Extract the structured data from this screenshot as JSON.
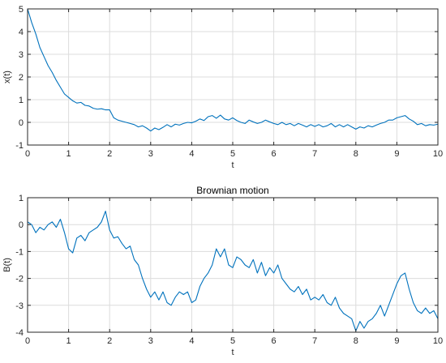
{
  "chart_data": [
    {
      "type": "line",
      "title": "",
      "xlabel": "t",
      "ylabel": "x(t)",
      "xlim": [
        0,
        10
      ],
      "ylim": [
        -1,
        5
      ],
      "xticks": [
        0,
        1,
        2,
        3,
        4,
        5,
        6,
        7,
        8,
        9,
        10
      ],
      "yticks": [
        -1,
        0,
        1,
        2,
        3,
        4,
        5
      ],
      "grid": true,
      "color": "#0072BD",
      "series": [
        {
          "x": [
            0,
            0.1,
            0.2,
            0.3,
            0.4,
            0.5,
            0.6,
            0.7,
            0.8,
            0.9,
            1.0,
            1.1,
            1.2,
            1.3,
            1.4,
            1.5,
            1.6,
            1.7,
            1.8,
            1.9,
            2.0,
            2.1,
            2.2,
            2.3,
            2.4,
            2.5,
            2.6,
            2.7,
            2.8,
            2.9,
            3.0,
            3.1,
            3.2,
            3.3,
            3.4,
            3.5,
            3.6,
            3.7,
            3.8,
            3.9,
            4.0,
            4.1,
            4.2,
            4.3,
            4.4,
            4.5,
            4.6,
            4.7,
            4.8,
            4.9,
            5.0,
            5.1,
            5.2,
            5.3,
            5.4,
            5.5,
            5.6,
            5.7,
            5.8,
            5.9,
            6.0,
            6.1,
            6.2,
            6.3,
            6.4,
            6.5,
            6.6,
            6.7,
            6.8,
            6.9,
            7.0,
            7.1,
            7.2,
            7.3,
            7.4,
            7.5,
            7.6,
            7.7,
            7.8,
            7.9,
            8.0,
            8.1,
            8.2,
            8.3,
            8.4,
            8.5,
            8.6,
            8.7,
            8.8,
            8.9,
            9.0,
            9.1,
            9.2,
            9.3,
            9.4,
            9.5,
            9.6,
            9.7,
            9.8,
            9.9,
            10.0
          ],
          "y": [
            5.0,
            4.4,
            3.9,
            3.3,
            2.9,
            2.5,
            2.2,
            1.85,
            1.55,
            1.25,
            1.1,
            0.95,
            0.85,
            0.88,
            0.75,
            0.72,
            0.62,
            0.58,
            0.6,
            0.55,
            0.55,
            0.2,
            0.1,
            0.05,
            0.0,
            -0.05,
            -0.1,
            -0.2,
            -0.15,
            -0.25,
            -0.38,
            -0.25,
            -0.32,
            -0.22,
            -0.1,
            -0.2,
            -0.08,
            -0.12,
            -0.05,
            0.0,
            -0.02,
            0.05,
            0.15,
            0.08,
            0.25,
            0.3,
            0.18,
            0.32,
            0.15,
            0.1,
            0.2,
            0.08,
            0.0,
            -0.05,
            0.1,
            0.02,
            -0.05,
            0.0,
            0.1,
            0.02,
            -0.05,
            -0.1,
            0.0,
            -0.1,
            -0.05,
            -0.15,
            -0.05,
            -0.12,
            -0.2,
            -0.1,
            -0.18,
            -0.1,
            -0.2,
            -0.15,
            -0.05,
            -0.2,
            -0.1,
            -0.2,
            -0.1,
            -0.2,
            -0.3,
            -0.2,
            -0.25,
            -0.15,
            -0.2,
            -0.12,
            -0.05,
            0.0,
            0.1,
            0.1,
            0.2,
            0.25,
            0.3,
            0.15,
            0.05,
            -0.1,
            -0.05,
            -0.15,
            -0.1,
            -0.12,
            -0.08
          ]
        }
      ]
    },
    {
      "type": "line",
      "title": "Brownian motion",
      "xlabel": "t",
      "ylabel": "B(t)",
      "xlim": [
        0,
        10
      ],
      "ylim": [
        -4,
        1
      ],
      "xticks": [
        0,
        1,
        2,
        3,
        4,
        5,
        6,
        7,
        8,
        9,
        10
      ],
      "yticks": [
        -4,
        -3,
        -2,
        -1,
        0,
        1
      ],
      "grid": true,
      "color": "#0072BD",
      "series": [
        {
          "x": [
            0,
            0.1,
            0.2,
            0.3,
            0.4,
            0.5,
            0.6,
            0.7,
            0.8,
            0.9,
            1.0,
            1.1,
            1.2,
            1.3,
            1.4,
            1.5,
            1.6,
            1.7,
            1.8,
            1.9,
            2.0,
            2.1,
            2.2,
            2.3,
            2.4,
            2.5,
            2.6,
            2.7,
            2.8,
            2.9,
            3.0,
            3.1,
            3.2,
            3.3,
            3.4,
            3.5,
            3.6,
            3.7,
            3.8,
            3.9,
            4.0,
            4.1,
            4.2,
            4.3,
            4.4,
            4.5,
            4.6,
            4.7,
            4.8,
            4.9,
            5.0,
            5.1,
            5.2,
            5.3,
            5.4,
            5.5,
            5.6,
            5.7,
            5.8,
            5.9,
            6.0,
            6.1,
            6.2,
            6.3,
            6.4,
            6.5,
            6.6,
            6.7,
            6.8,
            6.9,
            7.0,
            7.1,
            7.2,
            7.3,
            7.4,
            7.5,
            7.6,
            7.7,
            7.8,
            7.9,
            8.0,
            8.1,
            8.2,
            8.3,
            8.4,
            8.5,
            8.6,
            8.7,
            8.8,
            8.9,
            9.0,
            9.1,
            9.2,
            9.3,
            9.4,
            9.5,
            9.6,
            9.7,
            9.8,
            9.9,
            10.0
          ],
          "y": [
            0.1,
            0.0,
            -0.3,
            -0.1,
            -0.2,
            0.0,
            0.1,
            -0.1,
            0.2,
            -0.3,
            -0.9,
            -1.05,
            -0.5,
            -0.4,
            -0.6,
            -0.3,
            -0.2,
            -0.1,
            0.1,
            0.5,
            -0.2,
            -0.5,
            -0.45,
            -0.7,
            -0.9,
            -0.8,
            -1.3,
            -1.5,
            -2.0,
            -2.4,
            -2.7,
            -2.5,
            -2.8,
            -2.5,
            -2.9,
            -3.0,
            -2.7,
            -2.5,
            -2.6,
            -2.5,
            -2.9,
            -2.8,
            -2.3,
            -2.0,
            -1.8,
            -1.5,
            -0.9,
            -1.2,
            -0.9,
            -1.5,
            -1.6,
            -1.2,
            -1.3,
            -1.5,
            -1.6,
            -1.3,
            -1.8,
            -1.4,
            -1.9,
            -1.6,
            -1.8,
            -1.5,
            -2.0,
            -2.2,
            -2.4,
            -2.5,
            -2.3,
            -2.6,
            -2.4,
            -2.8,
            -2.7,
            -2.8,
            -2.6,
            -2.9,
            -3.0,
            -2.7,
            -3.1,
            -3.3,
            -3.4,
            -3.5,
            -3.95,
            -3.6,
            -3.85,
            -3.6,
            -3.5,
            -3.3,
            -3.0,
            -3.4,
            -3.0,
            -2.6,
            -2.2,
            -1.9,
            -1.8,
            -2.4,
            -2.9,
            -3.2,
            -3.3,
            -3.1,
            -3.3,
            -3.2,
            -3.5
          ]
        }
      ]
    }
  ]
}
